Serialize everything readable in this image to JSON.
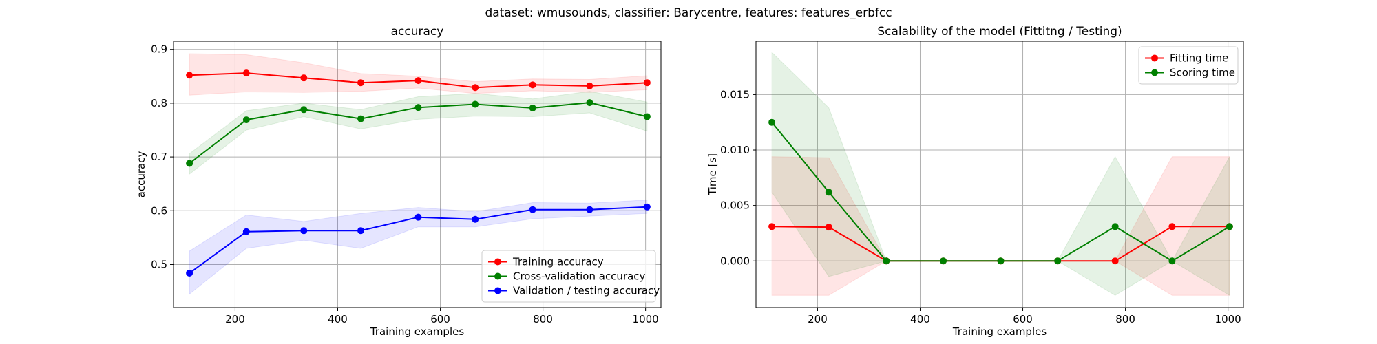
{
  "figure": {
    "suptitle": "dataset: wmusounds, classifier: Barycentre, features: features_erbfcc"
  },
  "chart_data": [
    {
      "type": "line",
      "title": "accuracy",
      "xlabel": "Training examples",
      "ylabel": "accuracy",
      "xlim": [
        80,
        1030
      ],
      "ylim": [
        0.42,
        0.915
      ],
      "xticks": [
        200,
        400,
        600,
        800,
        1000
      ],
      "yticks": [
        0.5,
        0.6,
        0.7,
        0.8,
        0.9
      ],
      "ytick_labels": [
        "0.5",
        "0.6",
        "0.7",
        "0.8",
        "0.9"
      ],
      "grid": true,
      "legend_position": "lower-right",
      "x": [
        111,
        222,
        334,
        445,
        557,
        668,
        780,
        891,
        1003
      ],
      "series": [
        {
          "name": "Training accuracy",
          "color": "#ff0000",
          "values": [
            0.852,
            0.856,
            0.847,
            0.838,
            0.842,
            0.829,
            0.834,
            0.832,
            0.838
          ],
          "lower": [
            0.815,
            0.821,
            0.82,
            0.822,
            0.828,
            0.818,
            0.823,
            0.82,
            0.825
          ],
          "upper": [
            0.892,
            0.89,
            0.875,
            0.855,
            0.85,
            0.84,
            0.845,
            0.844,
            0.851
          ]
        },
        {
          "name": "Cross-validation accuracy",
          "color": "#008000",
          "values": [
            0.688,
            0.769,
            0.788,
            0.771,
            0.792,
            0.798,
            0.791,
            0.801,
            0.775
          ],
          "lower": [
            0.668,
            0.75,
            0.775,
            0.752,
            0.77,
            0.776,
            0.775,
            0.782,
            0.748
          ],
          "upper": [
            0.706,
            0.786,
            0.8,
            0.788,
            0.812,
            0.818,
            0.808,
            0.822,
            0.802
          ]
        },
        {
          "name": "Validation / testing accuracy",
          "color": "#0000ff",
          "values": [
            0.484,
            0.561,
            0.563,
            0.563,
            0.588,
            0.584,
            0.602,
            0.602,
            0.607
          ],
          "lower": [
            0.445,
            0.53,
            0.545,
            0.53,
            0.57,
            0.57,
            0.585,
            0.59,
            0.595
          ],
          "upper": [
            0.525,
            0.592,
            0.58,
            0.595,
            0.606,
            0.598,
            0.615,
            0.614,
            0.62
          ]
        }
      ]
    },
    {
      "type": "line",
      "title": "Scalability of the model (Fittitng / Testing)",
      "xlabel": "Training examples",
      "ylabel": "Time [s]",
      "xlim": [
        80,
        1030
      ],
      "ylim": [
        -0.0042,
        0.0198
      ],
      "xticks": [
        200,
        400,
        600,
        800,
        1000
      ],
      "yticks": [
        0.0,
        0.005,
        0.01,
        0.015
      ],
      "ytick_labels": [
        "0.000",
        "0.005",
        "0.010",
        "0.015"
      ],
      "grid": true,
      "legend_position": "upper-right",
      "x": [
        111,
        222,
        334,
        445,
        557,
        668,
        780,
        891,
        1003
      ],
      "series": [
        {
          "name": "Fitting time",
          "color": "#ff0000",
          "values": [
            0.0031,
            0.00305,
            0.0,
            0.0,
            0.0,
            0.0,
            0.0,
            0.0031,
            0.0031
          ],
          "lower": [
            -0.0031,
            -0.0031,
            0.0,
            0.0,
            0.0,
            0.0,
            0.0,
            -0.0031,
            -0.0031
          ],
          "upper": [
            0.0094,
            0.0093,
            0.0,
            0.0,
            0.0,
            0.0,
            0.0,
            0.0094,
            0.0094
          ]
        },
        {
          "name": "Scoring time",
          "color": "#008000",
          "values": [
            0.0125,
            0.0062,
            0.0,
            0.0,
            0.0,
            0.0,
            0.0031,
            0.0,
            0.0031
          ],
          "lower": [
            0.0062,
            -0.0014,
            0.0,
            0.0,
            0.0,
            0.0,
            -0.0031,
            0.0,
            -0.0031
          ],
          "upper": [
            0.0188,
            0.0138,
            0.0,
            0.0,
            0.0,
            0.0,
            0.0094,
            0.0,
            0.0094
          ]
        }
      ]
    }
  ]
}
